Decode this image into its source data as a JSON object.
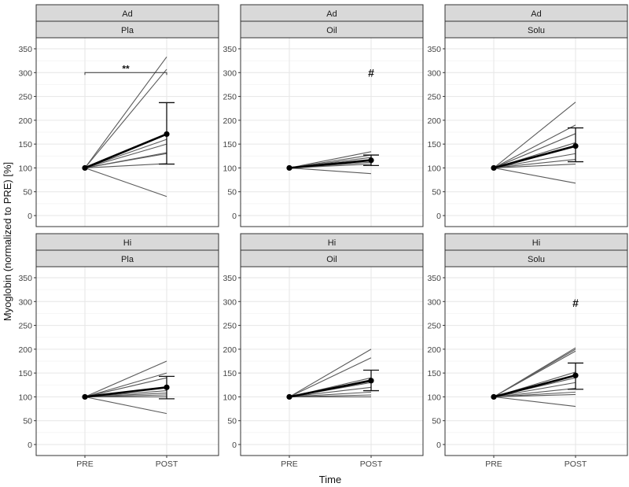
{
  "figure": {
    "ylabel": "Myoglobin (normalized to PRE) [%]",
    "xlabel": "Time"
  },
  "chart_data": {
    "type": "line",
    "x_categories": [
      "PRE",
      "POST"
    ],
    "ylim": [
      0,
      350
    ],
    "yticks": [
      0,
      50,
      100,
      150,
      200,
      250,
      300,
      350
    ],
    "grid": true,
    "panels": [
      {
        "strip_top": "Ad",
        "strip_bottom": "Pla",
        "individual_post": [
          333,
          307,
          170,
          160,
          150,
          132,
          130,
          109,
          40
        ],
        "mean": {
          "pre": 100,
          "post": 171
        },
        "error": {
          "lower": 108,
          "upper": 237
        },
        "annotation": {
          "text": "**",
          "bracket": true,
          "bracket_y": 300
        }
      },
      {
        "strip_top": "Ad",
        "strip_bottom": "Oil",
        "individual_post": [
          134,
          127,
          122,
          118,
          112,
          108,
          88
        ],
        "mean": {
          "pre": 100,
          "post": 116
        },
        "error": {
          "lower": 105,
          "upper": 127
        },
        "annotation": {
          "text": "#",
          "bracket": false,
          "y": 300
        }
      },
      {
        "strip_top": "Ad",
        "strip_bottom": "Solu",
        "individual_post": [
          238,
          190,
          172,
          153,
          130,
          118,
          108,
          68
        ],
        "mean": {
          "pre": 100,
          "post": 146
        },
        "error": {
          "lower": 113,
          "upper": 184
        },
        "annotation": null
      },
      {
        "strip_top": "Hi",
        "strip_bottom": "Pla",
        "individual_post": [
          175,
          150,
          140,
          120,
          113,
          108,
          104,
          100,
          65
        ],
        "mean": {
          "pre": 100,
          "post": 120
        },
        "error": {
          "lower": 96,
          "upper": 143
        },
        "annotation": null
      },
      {
        "strip_top": "Hi",
        "strip_bottom": "Oil",
        "individual_post": [
          200,
          182,
          140,
          136,
          130,
          120,
          110,
          104,
          100
        ],
        "mean": {
          "pre": 100,
          "post": 134
        },
        "error": {
          "lower": 113,
          "upper": 156
        },
        "annotation": null
      },
      {
        "strip_top": "Hi",
        "strip_bottom": "Solu",
        "individual_post": [
          203,
          200,
          196,
          152,
          140,
          130,
          118,
          110,
          105,
          80
        ],
        "mean": {
          "pre": 100,
          "post": 145
        },
        "error": {
          "lower": 116,
          "upper": 171
        },
        "annotation": {
          "text": "#",
          "bracket": false,
          "y": 297
        }
      }
    ]
  }
}
